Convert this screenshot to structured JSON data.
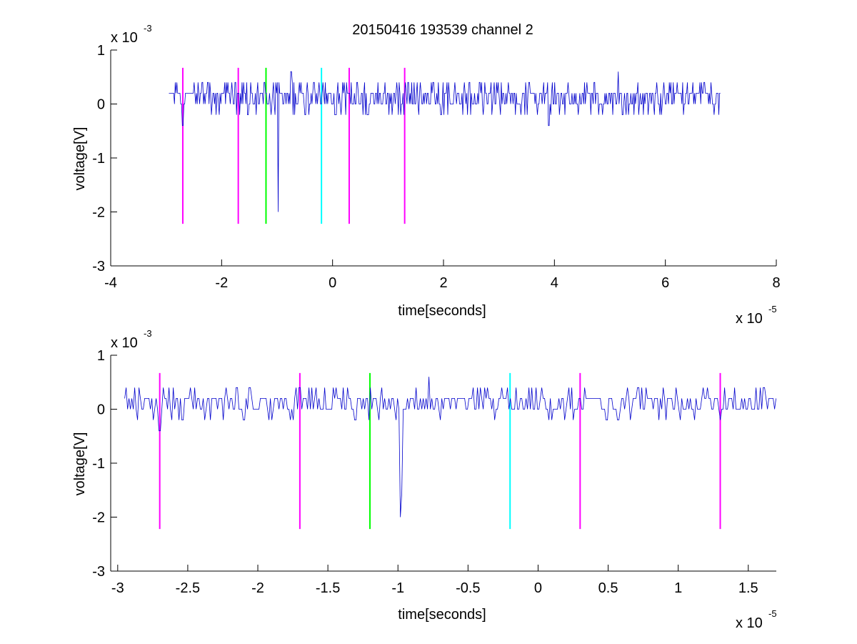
{
  "figure_title": "20150416 193539 channel 2",
  "chart_data": [
    {
      "type": "line",
      "title": "20150416 193539 channel 2",
      "xlabel": "time[seconds]",
      "ylabel": "voltage[V]",
      "x_scale_label": "x 10",
      "x_scale_exp": "-5",
      "y_scale_label": "x 10",
      "y_scale_exp": "-3",
      "xlim": [
        -4,
        8
      ],
      "ylim": [
        -3,
        1
      ],
      "xticks": [
        "-4",
        "-2",
        "0",
        "2",
        "4",
        "6",
        "8"
      ],
      "yticks": [
        "1",
        "0",
        "-1",
        "-2",
        "-3"
      ],
      "xtick_values": [
        -4,
        -2,
        0,
        2,
        4,
        6,
        8
      ],
      "ytick_values": [
        1,
        0,
        -1,
        -2,
        -3
      ],
      "grid": false,
      "signal": {
        "color": "#0000CC",
        "x_start": -2.95,
        "x_end": 7.0,
        "baseline_levels": [
          0.0,
          0.2
        ],
        "spikes": [
          {
            "x": -2.7,
            "y": -0.4
          },
          {
            "x": -0.98,
            "y": -2.0
          },
          {
            "x": -0.75,
            "y": 0.6
          },
          {
            "x": 3.9,
            "y": -0.4
          },
          {
            "x": 5.15,
            "y": 0.6
          }
        ]
      },
      "markers": [
        {
          "x": -2.7,
          "color": "#FF00FF",
          "y_top": 0.67,
          "y_bottom": -2.22
        },
        {
          "x": -1.7,
          "color": "#FF00FF",
          "y_top": 0.67,
          "y_bottom": -2.22
        },
        {
          "x": -1.2,
          "color": "#00FF00",
          "y_top": 0.67,
          "y_bottom": -2.22
        },
        {
          "x": -0.2,
          "color": "#00FFFF",
          "y_top": 0.67,
          "y_bottom": -2.22
        },
        {
          "x": 0.3,
          "color": "#FF00FF",
          "y_top": 0.67,
          "y_bottom": -2.22
        },
        {
          "x": 1.3,
          "color": "#FF00FF",
          "y_top": 0.67,
          "y_bottom": -2.22
        }
      ]
    },
    {
      "type": "line",
      "title": "",
      "xlabel": "time[seconds]",
      "ylabel": "voltage[V]",
      "x_scale_label": "x 10",
      "x_scale_exp": "-5",
      "y_scale_label": "x 10",
      "y_scale_exp": "-3",
      "xlim": [
        -3.05,
        1.7
      ],
      "ylim": [
        -3,
        1
      ],
      "xticks": [
        "-3",
        "-2.5",
        "-2",
        "-1.5",
        "-1",
        "-0.5",
        "0",
        "0.5",
        "1",
        "1.5"
      ],
      "yticks": [
        "1",
        "0",
        "-1",
        "-2",
        "-3"
      ],
      "xtick_values": [
        -3,
        -2.5,
        -2,
        -1.5,
        -1,
        -0.5,
        0,
        0.5,
        1,
        1.5
      ],
      "ytick_values": [
        1,
        0,
        -1,
        -2,
        -3
      ],
      "grid": false,
      "signal": {
        "color": "#0000CC",
        "x_start": -2.95,
        "x_end": 1.7,
        "baseline_levels": [
          0.0,
          0.2
        ],
        "spikes": [
          {
            "x": -2.7,
            "y": -0.4
          },
          {
            "x": -1.7,
            "y": 0.4
          },
          {
            "x": -0.98,
            "y": -2.0
          },
          {
            "x": -0.97,
            "y": -1.55
          },
          {
            "x": -0.78,
            "y": 0.6
          },
          {
            "x": 1.3,
            "y": -0.2
          }
        ]
      },
      "markers": [
        {
          "x": -2.7,
          "color": "#FF00FF",
          "y_top": 0.67,
          "y_bottom": -2.22
        },
        {
          "x": -1.7,
          "color": "#FF00FF",
          "y_top": 0.67,
          "y_bottom": -2.22
        },
        {
          "x": -1.2,
          "color": "#00FF00",
          "y_top": 0.67,
          "y_bottom": -2.22
        },
        {
          "x": -0.2,
          "color": "#00FFFF",
          "y_top": 0.67,
          "y_bottom": -2.22
        },
        {
          "x": 0.3,
          "color": "#FF00FF",
          "y_top": 0.67,
          "y_bottom": -2.22
        },
        {
          "x": 1.3,
          "color": "#FF00FF",
          "y_top": 0.67,
          "y_bottom": -2.22
        }
      ]
    }
  ]
}
